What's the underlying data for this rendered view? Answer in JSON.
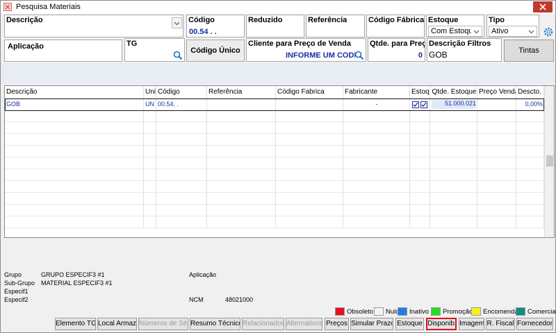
{
  "window": {
    "title": "Pesquisa Materiais"
  },
  "filters": [
    {
      "label": "Descrição"
    },
    {
      "label": "Código",
      "value": "00.54 .   ."
    },
    {
      "label": "Reduzido"
    },
    {
      "label": "Referência"
    },
    {
      "label": "Código Fábrica"
    },
    {
      "label": "Estoque",
      "value": "Com Estoque"
    },
    {
      "label": "Tipo",
      "value": "Ativo"
    },
    {
      "label": "Aplicação"
    },
    {
      "label": "TG"
    },
    {
      "label": "Código Único"
    },
    {
      "label": "Cliente para Preço de Venda",
      "value": "INFORME UM CÓDIG"
    },
    {
      "label": "Qtde. para Preço",
      "value": "0"
    },
    {
      "label": "Descrição Filtros",
      "value": "GOB"
    }
  ],
  "tintas_button": "Tintas",
  "table": {
    "columns": [
      "Descrição",
      "Uni",
      "Código",
      "Referência",
      "Código Fabrica",
      "Fabricante",
      "Estoq.",
      "Qtde. Estoque",
      "Preço Venda",
      "Descto."
    ],
    "rows": [
      [
        "GOB",
        "UN",
        "00.54.  .",
        null,
        null,
        "-",
        null,
        "51.000.021",
        null,
        "0,00%"
      ]
    ]
  },
  "details": [
    {
      "label": "Grupo",
      "value": "GRUPO ESPECIF3 #1"
    },
    {
      "label": "Sub-Grupo",
      "value": "MATERIAL ESPECIF3 #1"
    },
    {
      "label": "Especif1"
    },
    {
      "label": "Especif2"
    },
    {
      "label": "Aplicação"
    },
    {
      "label": "NCM",
      "value": "48021000"
    }
  ],
  "legend": [
    {
      "label": "Obsoleto",
      "color": "#e8101a"
    },
    {
      "label": "Nulo",
      "color": "#f4f4f4"
    },
    {
      "label": "Inativo",
      "color": "#1e7de8"
    },
    {
      "label": "Promoção",
      "color": "#22e020"
    },
    {
      "label": "Encomenda",
      "color": "#f8f020"
    },
    {
      "label": "Comercial",
      "color": "#128a86"
    }
  ],
  "buttons": [
    {
      "label": "Elemento TG",
      "enabled": true
    },
    {
      "label": "Local Armaz.",
      "enabled": true
    },
    {
      "label": "Números de Série",
      "enabled": false
    },
    {
      "label": "Resumo Técnico",
      "enabled": true
    },
    {
      "label": "Relacionados",
      "enabled": false
    },
    {
      "label": "Alternativos",
      "enabled": false
    },
    {
      "label": "Preços",
      "enabled": true
    },
    {
      "label": "Simular Prazos",
      "enabled": true
    },
    {
      "label": "Estoque",
      "enabled": true
    },
    {
      "label": "Disponib.",
      "enabled": true,
      "highlighted": true
    },
    {
      "label": "Imagem",
      "enabled": true
    },
    {
      "label": "R. Fiscal",
      "enabled": true
    },
    {
      "label": "Fornecedor",
      "enabled": true
    }
  ]
}
